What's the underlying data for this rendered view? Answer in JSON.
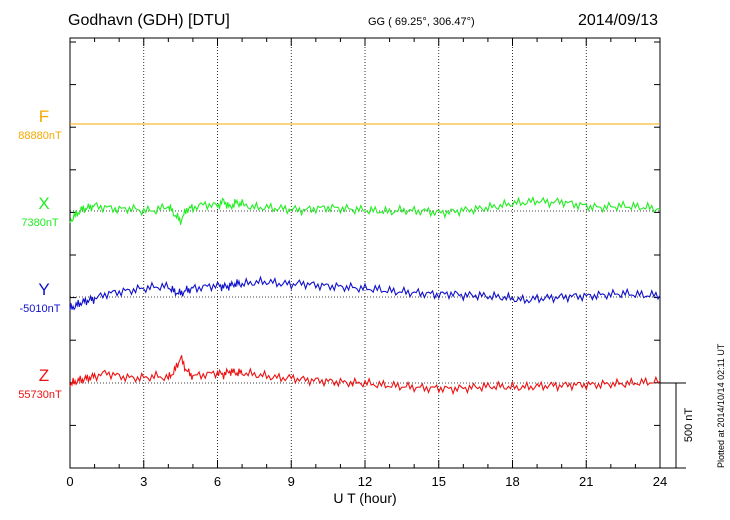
{
  "header": {
    "station": "Godhavn (GDH)  [DTU]",
    "coords": "GG ( 69.25°, 306.47°)",
    "date": "2014/09/13"
  },
  "footer": {
    "plotted": "Plotted at 2014/10/14 02:11  UT"
  },
  "colors": {
    "F": "#f5a800",
    "X": "#22ee22",
    "Y": "#1111cc",
    "Z": "#ee1111"
  },
  "chart_data": {
    "type": "line",
    "xlabel": "U T (hour)",
    "xlim": [
      0,
      24
    ],
    "xticks": [
      "0",
      "3",
      "6",
      "9",
      "12",
      "15",
      "18",
      "21",
      "24"
    ],
    "scale_label": "500 nT",
    "scale_nT": 500,
    "series": [
      {
        "name": "F",
        "baseline_label": "88880nT",
        "baseline_nT": 88880,
        "x": [
          0,
          24
        ],
        "y": [
          88880,
          88880
        ]
      },
      {
        "name": "X",
        "baseline_label": "7380nT",
        "baseline_nT": 7380,
        "x": [
          0,
          0.25,
          0.5,
          0.75,
          1,
          1.5,
          2,
          2.5,
          3,
          3.5,
          4,
          4.25,
          4.5,
          4.75,
          5,
          5.5,
          6,
          6.25,
          6.5,
          6.75,
          7,
          7.5,
          8,
          8.5,
          9,
          9.5,
          10,
          10.5,
          11,
          11.5,
          12,
          12.5,
          13,
          13.5,
          14,
          14.5,
          15,
          15.5,
          16,
          16.5,
          17,
          17.5,
          18,
          18.5,
          19,
          19.5,
          20,
          20.5,
          21,
          21.5,
          22,
          22.5,
          23,
          23.5,
          24
        ],
        "y": [
          7320,
          7360,
          7390,
          7400,
          7410,
          7400,
          7390,
          7395,
          7380,
          7385,
          7410,
          7360,
          7320,
          7390,
          7400,
          7420,
          7410,
          7440,
          7400,
          7430,
          7420,
          7400,
          7400,
          7395,
          7390,
          7385,
          7395,
          7400,
          7395,
          7390,
          7385,
          7380,
          7375,
          7385,
          7380,
          7380,
          7370,
          7375,
          7385,
          7390,
          7400,
          7410,
          7425,
          7430,
          7440,
          7430,
          7435,
          7420,
          7410,
          7400,
          7405,
          7410,
          7405,
          7400,
          7390
        ]
      },
      {
        "name": "Y",
        "baseline_label": "-5010nT",
        "baseline_nT": -5010,
        "x": [
          0,
          0.25,
          0.5,
          0.75,
          1,
          1.5,
          2,
          2.5,
          3,
          3.5,
          4,
          4.25,
          4.5,
          4.75,
          5,
          5.5,
          6,
          6.25,
          6.5,
          6.75,
          7,
          7.5,
          8,
          8.5,
          9,
          9.5,
          10,
          10.5,
          11,
          11.5,
          12,
          12.5,
          13,
          13.5,
          14,
          14.5,
          15,
          15.5,
          16,
          16.5,
          17,
          17.5,
          18,
          18.5,
          19,
          19.5,
          20,
          20.5,
          21,
          21.5,
          22,
          22.5,
          23,
          23.5,
          24
        ],
        "y": [
          -5080,
          -5060,
          -5040,
          -5030,
          -5020,
          -4990,
          -4980,
          -4970,
          -4960,
          -4950,
          -4950,
          -4980,
          -4990,
          -4970,
          -4960,
          -4950,
          -4940,
          -4950,
          -4945,
          -4930,
          -4935,
          -4925,
          -4920,
          -4930,
          -4935,
          -4930,
          -4940,
          -4945,
          -4950,
          -4955,
          -4960,
          -4965,
          -4975,
          -4980,
          -4985,
          -4990,
          -4995,
          -4990,
          -5000,
          -5000,
          -5005,
          -5010,
          -5020,
          -5030,
          -5020,
          -5015,
          -5010,
          -5005,
          -5005,
          -5000,
          -4995,
          -4990,
          -4995,
          -5000,
          -5000
        ]
      },
      {
        "name": "Z",
        "baseline_label": "55730nT",
        "baseline_nT": 55730,
        "x": [
          0,
          0.25,
          0.5,
          0.75,
          1,
          1.5,
          2,
          2.5,
          3,
          3.5,
          4,
          4.25,
          4.5,
          4.75,
          5,
          5.5,
          6,
          6.25,
          6.5,
          6.75,
          7,
          7.5,
          8,
          8.5,
          9,
          9.5,
          10,
          10.5,
          11,
          11.5,
          12,
          12.5,
          13,
          13.5,
          14,
          14.5,
          15,
          15.5,
          16,
          16.5,
          17,
          17.5,
          18,
          18.5,
          19,
          19.5,
          20,
          20.5,
          21,
          21.5,
          22,
          22.5,
          23,
          23.5,
          24
        ],
        "y": [
          55720,
          55740,
          55750,
          55760,
          55770,
          55790,
          55770,
          55760,
          55760,
          55770,
          55760,
          55800,
          55880,
          55800,
          55770,
          55780,
          55790,
          55780,
          55800,
          55790,
          55790,
          55780,
          55770,
          55760,
          55760,
          55750,
          55745,
          55740,
          55735,
          55730,
          55730,
          55720,
          55715,
          55710,
          55705,
          55700,
          55700,
          55695,
          55700,
          55705,
          55710,
          55710,
          55705,
          55705,
          55710,
          55715,
          55715,
          55720,
          55720,
          55720,
          55725,
          55725,
          55730,
          55735,
          55740
        ]
      }
    ]
  }
}
